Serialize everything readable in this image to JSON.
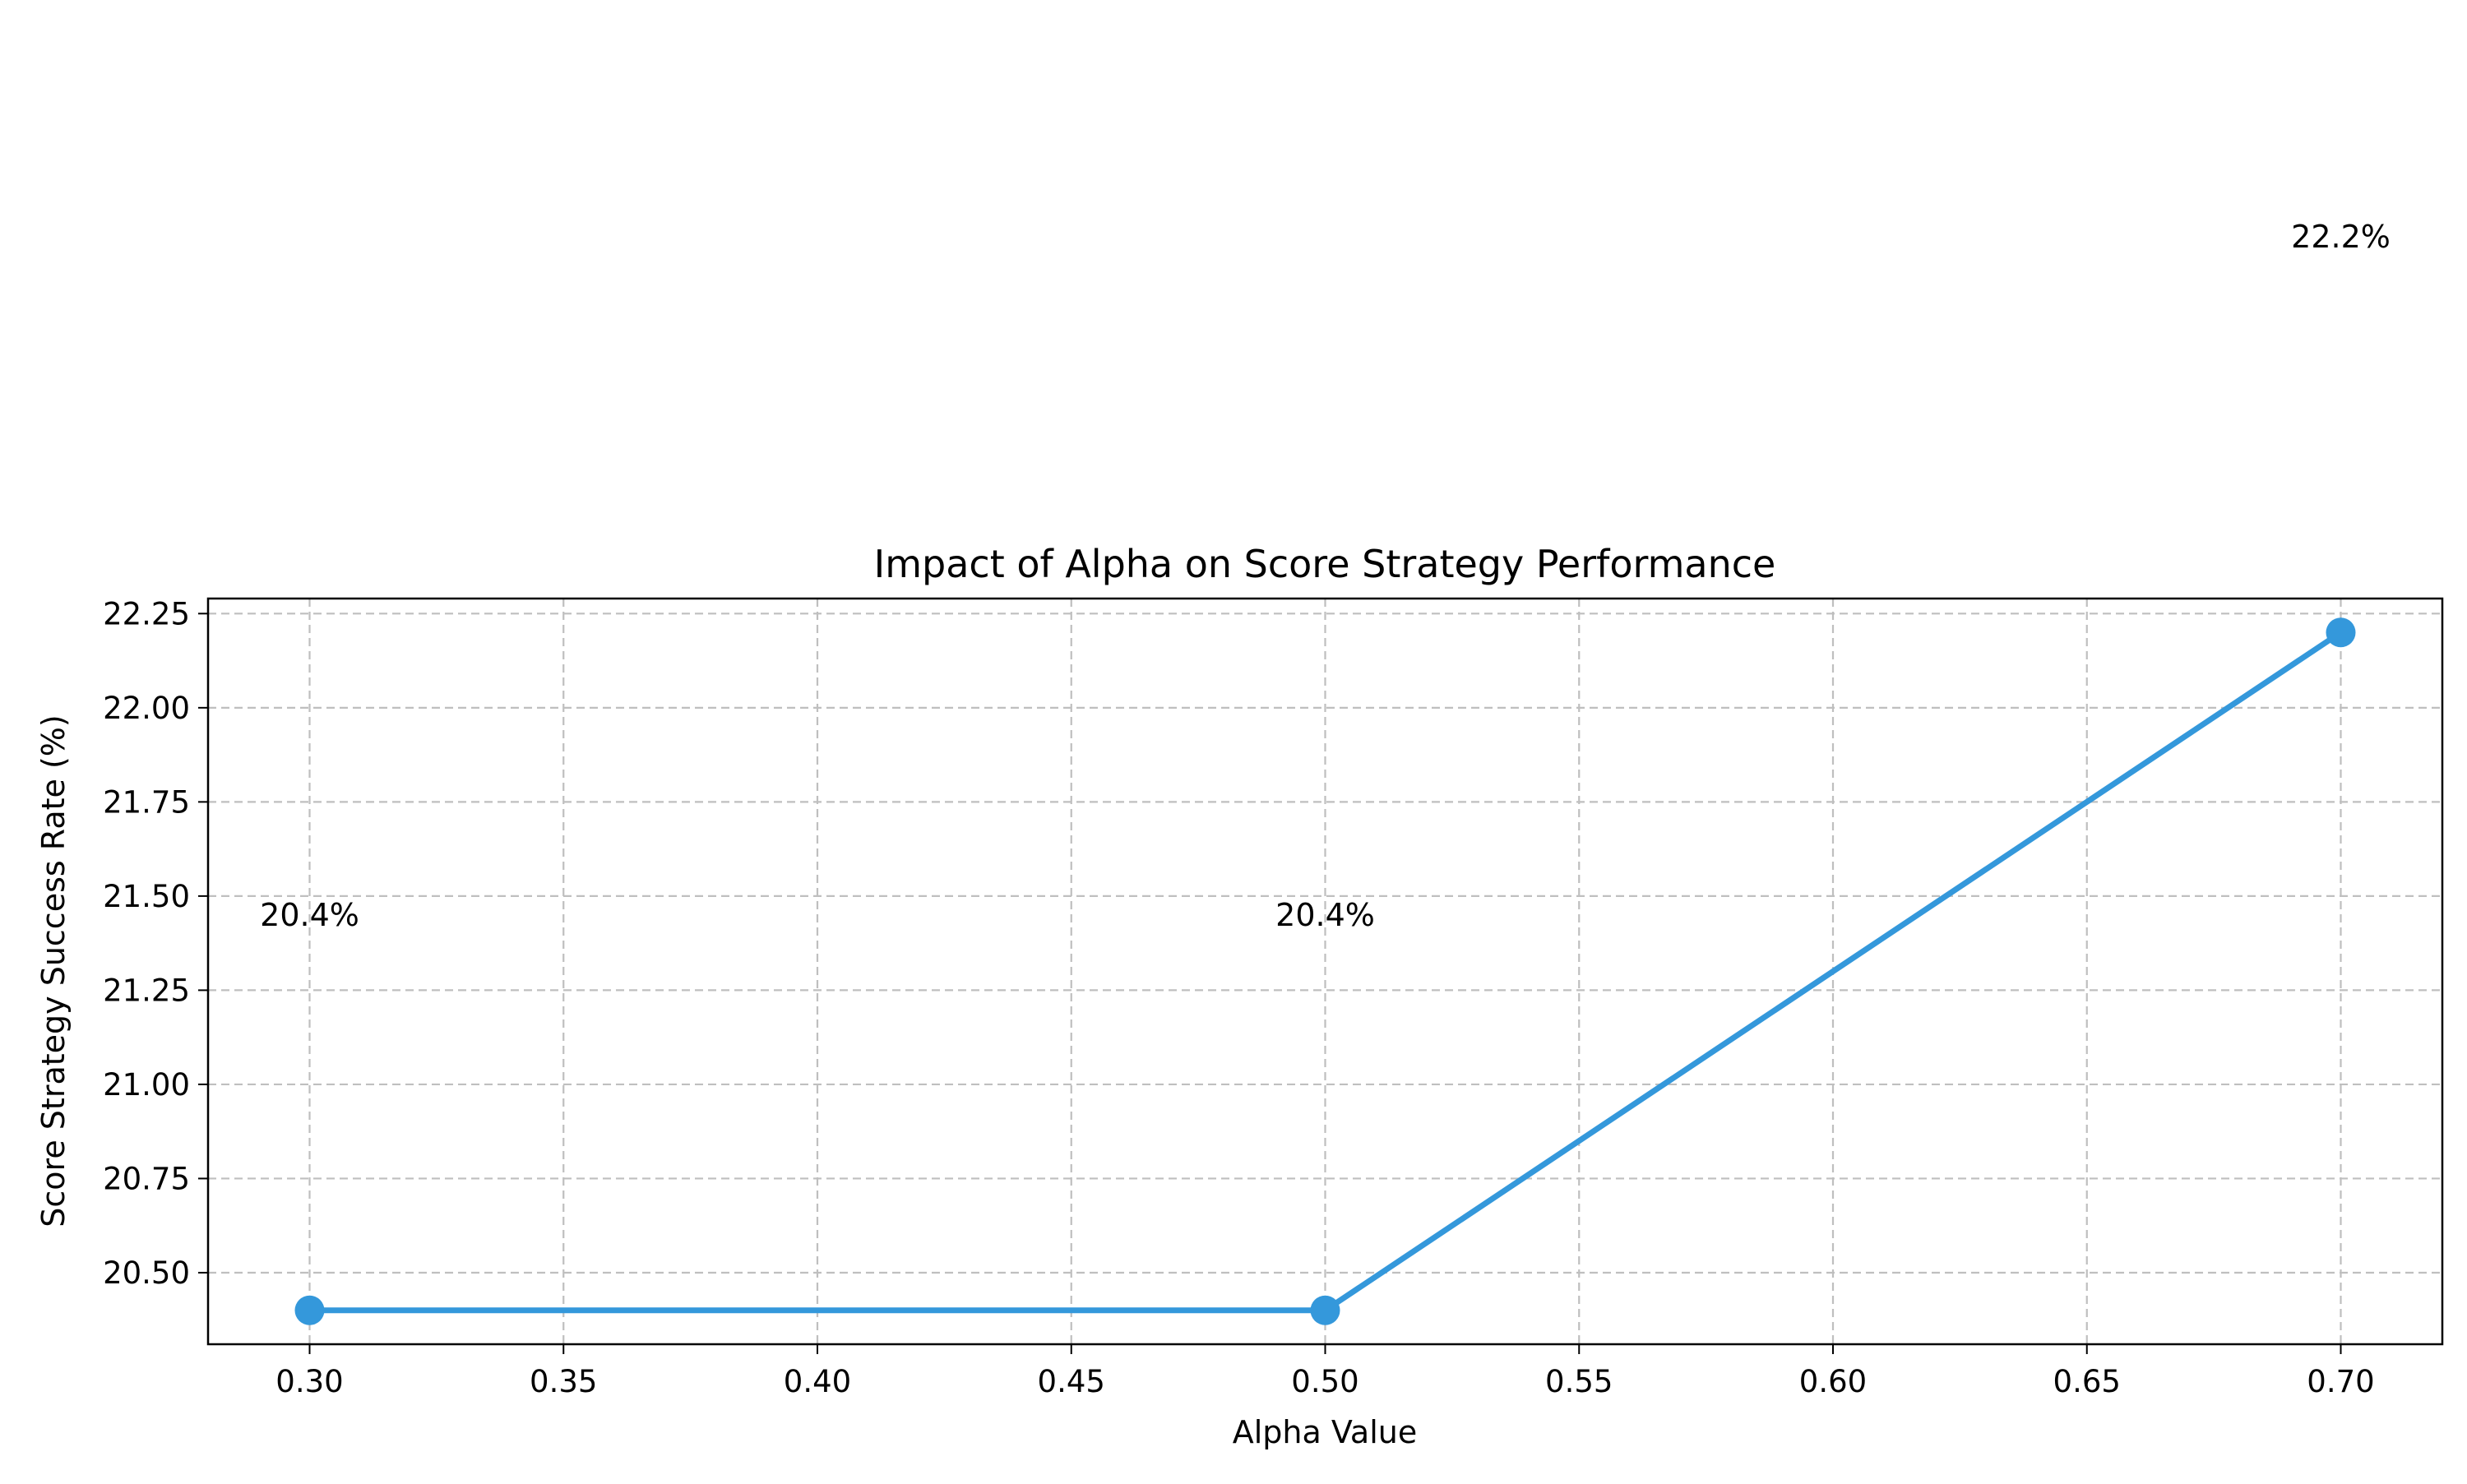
{
  "chart_data": {
    "type": "line",
    "title": "Impact of Alpha on Score Strategy Performance",
    "xlabel": "Alpha Value",
    "ylabel": "Score Strategy Success Rate (%)",
    "xlim": [
      0.28,
      0.72
    ],
    "ylim": [
      20.31,
      22.29
    ],
    "x_ticks": [
      0.3,
      0.35,
      0.4,
      0.45,
      0.5,
      0.55,
      0.6,
      0.65,
      0.7
    ],
    "x_tick_labels": [
      "0.30",
      "0.35",
      "0.40",
      "0.45",
      "0.50",
      "0.55",
      "0.60",
      "0.65",
      "0.70"
    ],
    "y_ticks": [
      20.5,
      20.75,
      21.0,
      21.25,
      21.5,
      21.75,
      22.0,
      22.25
    ],
    "y_tick_labels": [
      "20.50",
      "20.75",
      "21.00",
      "21.25",
      "21.50",
      "21.75",
      "22.00",
      "22.25"
    ],
    "grid": true,
    "series": [
      {
        "x": [
          0.3,
          0.5,
          0.7
        ],
        "y": [
          20.4,
          20.4,
          22.2
        ],
        "color": "#3498db",
        "marker": "circle"
      }
    ],
    "annotations": [
      {
        "x": 0.3,
        "y": 21.45,
        "text": "20.4%"
      },
      {
        "x": 0.5,
        "y": 21.45,
        "text": "20.4%"
      },
      {
        "x": 0.7,
        "y": 23.25,
        "text": "22.2%"
      }
    ]
  }
}
